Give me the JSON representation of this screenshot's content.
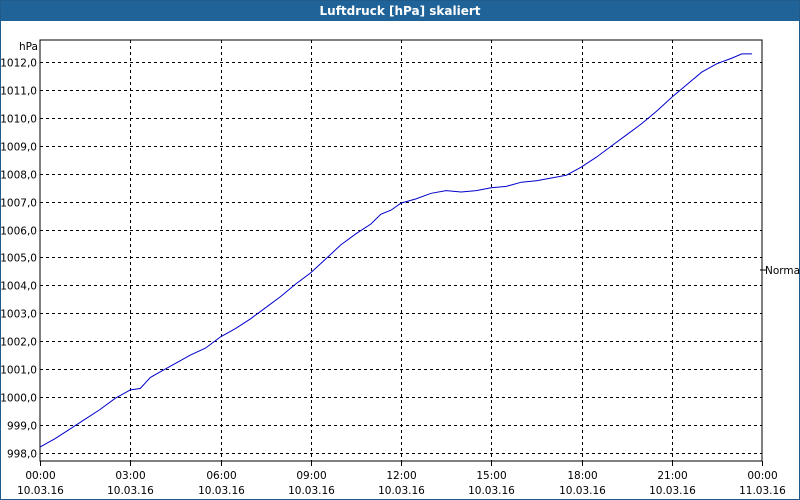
{
  "chart_data": {
    "type": "line",
    "title": "Luftdruck [hPa] skaliert",
    "ylabel": "hPa",
    "ylim": [
      997.7,
      1012.8
    ],
    "yticks": [
      "998,0",
      "999,0",
      "1000,0",
      "1001,0",
      "1002,0",
      "1003,0",
      "1004,0",
      "1005,0",
      "1006,0",
      "1007,0",
      "1008,0",
      "1009,0",
      "1010,0",
      "1011,0",
      "1012,0"
    ],
    "ytick_values": [
      998,
      999,
      1000,
      1001,
      1002,
      1003,
      1004,
      1005,
      1006,
      1007,
      1008,
      1009,
      1010,
      1011,
      1012
    ],
    "xlim": [
      0,
      24
    ],
    "xticks": [
      {
        "time": "00:00",
        "date": "10.03.16",
        "hour": 0
      },
      {
        "time": "03:00",
        "date": "10.03.16",
        "hour": 3
      },
      {
        "time": "06:00",
        "date": "10.03.16",
        "hour": 6
      },
      {
        "time": "09:00",
        "date": "10.03.16",
        "hour": 9
      },
      {
        "time": "12:00",
        "date": "10.03.16",
        "hour": 12
      },
      {
        "time": "15:00",
        "date": "10.03.16",
        "hour": 15
      },
      {
        "time": "18:00",
        "date": "10.03.16",
        "hour": 18
      },
      {
        "time": "21:00",
        "date": "10.03.16",
        "hour": 21
      },
      {
        "time": "00:00",
        "date": "11.03.16",
        "hour": 24
      }
    ],
    "grid": true,
    "line_color": "#0000cc",
    "series": [
      {
        "name": "",
        "points": [
          [
            0,
            998.2
          ],
          [
            0.5,
            998.5
          ],
          [
            1,
            998.85
          ],
          [
            1.5,
            999.2
          ],
          [
            2,
            999.55
          ],
          [
            2.5,
            999.95
          ],
          [
            3,
            1000.25
          ],
          [
            3.33,
            1000.3
          ],
          [
            3.67,
            1000.7
          ],
          [
            4,
            1000.9
          ],
          [
            4.5,
            1001.2
          ],
          [
            5,
            1001.5
          ],
          [
            5.5,
            1001.75
          ],
          [
            6,
            1002.15
          ],
          [
            6.5,
            1002.45
          ],
          [
            7,
            1002.8
          ],
          [
            7.5,
            1003.2
          ],
          [
            8,
            1003.6
          ],
          [
            8.5,
            1004.05
          ],
          [
            9,
            1004.45
          ],
          [
            9.5,
            1004.95
          ],
          [
            10,
            1005.45
          ],
          [
            10.5,
            1005.85
          ],
          [
            11,
            1006.2
          ],
          [
            11.33,
            1006.55
          ],
          [
            11.67,
            1006.7
          ],
          [
            12,
            1006.95
          ],
          [
            12.5,
            1007.1
          ],
          [
            13,
            1007.3
          ],
          [
            13.5,
            1007.4
          ],
          [
            14,
            1007.35
          ],
          [
            14.5,
            1007.4
          ],
          [
            15,
            1007.5
          ],
          [
            15.5,
            1007.55
          ],
          [
            16,
            1007.7
          ],
          [
            16.5,
            1007.75
          ],
          [
            17,
            1007.85
          ],
          [
            17.5,
            1007.95
          ],
          [
            18,
            1008.25
          ],
          [
            18.5,
            1008.6
          ],
          [
            19,
            1009.0
          ],
          [
            19.5,
            1009.4
          ],
          [
            20,
            1009.8
          ],
          [
            20.5,
            1010.25
          ],
          [
            21,
            1010.75
          ],
          [
            21.5,
            1011.2
          ],
          [
            22,
            1011.65
          ],
          [
            22.5,
            1011.95
          ],
          [
            23,
            1012.15
          ],
          [
            23.33,
            1012.3
          ],
          [
            23.67,
            1012.3
          ]
        ]
      }
    ],
    "annotation": "Normal"
  }
}
